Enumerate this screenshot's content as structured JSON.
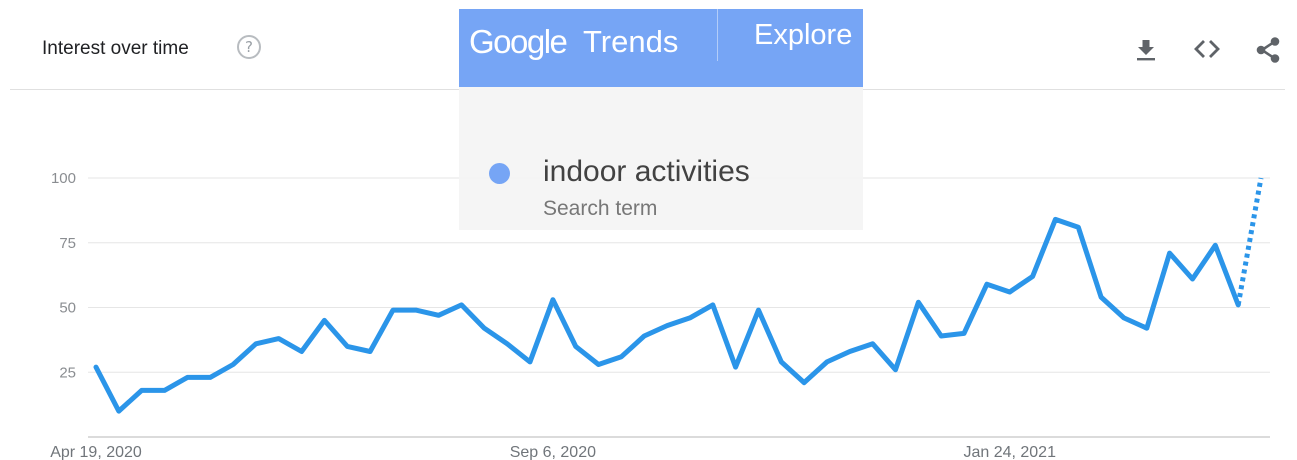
{
  "header": {
    "title": "Interest over time",
    "help_icon": "question-circle-icon",
    "actions": [
      {
        "name": "download",
        "icon": "download-icon"
      },
      {
        "name": "embed",
        "icon": "code-icon"
      },
      {
        "name": "share",
        "icon": "share-icon"
      }
    ]
  },
  "brand": {
    "google": "Google",
    "trends": "Trends",
    "explore": "Explore",
    "color": "#76a5f5"
  },
  "search_term": {
    "term": "indoor activities",
    "type": "Search term",
    "color": "#76a5f5"
  },
  "chart_data": {
    "type": "line",
    "series": [
      {
        "name": "indoor activities",
        "color": "#2b95e9",
        "values": [
          27,
          10,
          18,
          18,
          23,
          23,
          28,
          36,
          38,
          33,
          45,
          35,
          33,
          49,
          49,
          47,
          51,
          42,
          36,
          29,
          53,
          35,
          28,
          31,
          39,
          43,
          46,
          51,
          27,
          49,
          29,
          21,
          29,
          33,
          36,
          26,
          52,
          39,
          40,
          59,
          56,
          62,
          84,
          81,
          54,
          46,
          42,
          71,
          61,
          74,
          51,
          100
        ],
        "partial_from_index": 50
      }
    ],
    "x_labels": [
      "Apr 19, 2020",
      "Sep 6, 2020",
      "Jan 24, 2021"
    ],
    "x_label_indices": [
      0,
      20,
      40
    ],
    "yticks": [
      25,
      50,
      75,
      100
    ],
    "ylim": [
      0,
      100
    ],
    "grid": true
  }
}
